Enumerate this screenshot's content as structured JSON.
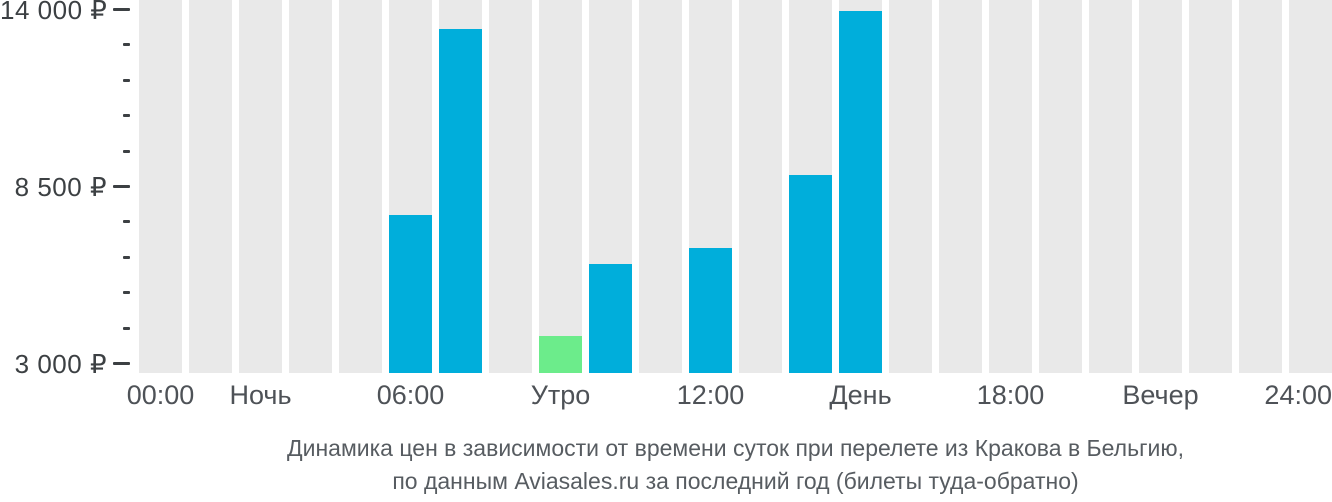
{
  "chart_data": {
    "type": "bar",
    "title": "Динамика цен в зависимости от времени суток при перелете из Кракова в Бельгию, по данным Aviasales.ru за последний год (билеты туда-обратно)",
    "xlabel": "",
    "ylabel": "",
    "x_axis": {
      "labels": [
        {
          "text": "00:00",
          "bar_index": 0,
          "align": "center"
        },
        {
          "text": "Ночь",
          "bar_index": 2,
          "align": "center"
        },
        {
          "text": "06:00",
          "bar_index": 5,
          "align": "center"
        },
        {
          "text": "Утро",
          "bar_index": 8,
          "align": "center"
        },
        {
          "text": "12:00",
          "bar_index": 11,
          "align": "center"
        },
        {
          "text": "День",
          "bar_index": 14,
          "align": "center"
        },
        {
          "text": "18:00",
          "bar_index": 17,
          "align": "center"
        },
        {
          "text": "Вечер",
          "bar_index": 20,
          "align": "center"
        },
        {
          "text": "24:00",
          "bar_index": 23,
          "align": "right-edge"
        }
      ]
    },
    "y_axis": {
      "tick_labels": [
        "14 000 ₽",
        "8 500 ₽",
        "3 000 ₽"
      ],
      "tick_values": [
        14000,
        8500,
        3000
      ],
      "minor_ticks_between_majors": 4,
      "range_shown": [
        3000,
        14000
      ],
      "grid": false
    },
    "bars": [
      {
        "hour": 0,
        "value": null
      },
      {
        "hour": 1,
        "value": null
      },
      {
        "hour": 2,
        "value": null
      },
      {
        "hour": 3,
        "value": null
      },
      {
        "hour": 4,
        "value": null
      },
      {
        "hour": 5,
        "value": 7600,
        "color": "blue"
      },
      {
        "hour": 6,
        "value": 13400,
        "color": "blue"
      },
      {
        "hour": 7,
        "value": null
      },
      {
        "hour": 8,
        "value": 3850,
        "color": "green",
        "lowest_price": true
      },
      {
        "hour": 9,
        "value": 6100,
        "color": "blue"
      },
      {
        "hour": 10,
        "value": null
      },
      {
        "hour": 11,
        "value": 6600,
        "color": "blue"
      },
      {
        "hour": 12,
        "value": null
      },
      {
        "hour": 13,
        "value": 8850,
        "color": "blue"
      },
      {
        "hour": 14,
        "value": 13950,
        "color": "blue"
      },
      {
        "hour": 15,
        "value": null
      },
      {
        "hour": 16,
        "value": null
      },
      {
        "hour": 17,
        "value": null
      },
      {
        "hour": 18,
        "value": null
      },
      {
        "hour": 19,
        "value": null
      },
      {
        "hour": 20,
        "value": null
      },
      {
        "hour": 21,
        "value": null
      },
      {
        "hour": 22,
        "value": null
      },
      {
        "hour": 23,
        "value": null
      }
    ],
    "colors": {
      "bar_background": "#e9e9e9",
      "bar_price": "#00aedb",
      "bar_lowest": "#6cec8b",
      "axis_text": "#3c4043"
    },
    "legend": null
  },
  "caption": {
    "line1": "Динамика цен в зависимости от времени суток при перелете из Кракова в Бельгию,",
    "line2": "по данным Aviasales.ru за последний год (билеты туда-обратно)"
  }
}
